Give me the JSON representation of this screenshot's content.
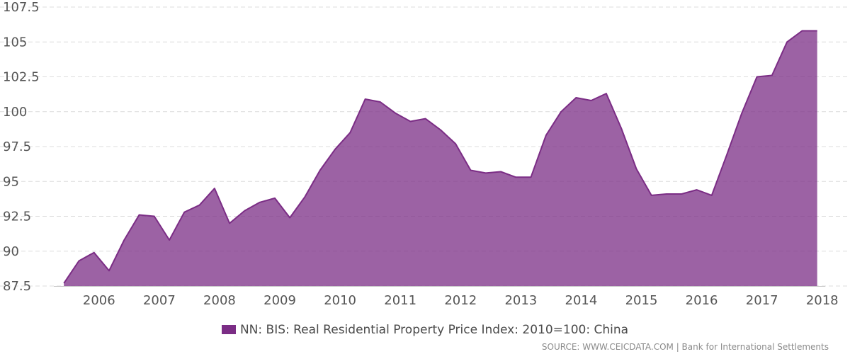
{
  "colors": {
    "series": "#7b2d85",
    "grid": "#dcdcdc",
    "tick_text": "#555555"
  },
  "legend": {
    "label": "NN: BIS: Real Residential Property Price Index: 2010=100: China"
  },
  "source_text": "SOURCE: WWW.CEICDATA.COM | Bank for International Settlements",
  "chart_data": {
    "type": "area",
    "ylim": [
      87.5,
      107.5
    ],
    "y_ticks": [
      87.5,
      90,
      92.5,
      95,
      97.5,
      100,
      102.5,
      105,
      107.5
    ],
    "y_tick_labels": [
      "87.5",
      "90",
      "92.5",
      "95",
      "97.5",
      "100",
      "102.5",
      "105",
      "107.5"
    ],
    "x_tick_labels": [
      "2006",
      "2007",
      "2008",
      "2009",
      "2010",
      "2011",
      "2012",
      "2013",
      "2014",
      "2015",
      "2016",
      "2017",
      "2018"
    ],
    "series": [
      {
        "name": "NN: BIS: Real Residential Property Price Index: 2010=100: China",
        "x": [
          "2005-06",
          "2005-09",
          "2005-12",
          "2006-03",
          "2006-06",
          "2006-09",
          "2006-12",
          "2007-03",
          "2007-06",
          "2007-09",
          "2007-12",
          "2008-03",
          "2008-06",
          "2008-09",
          "2008-12",
          "2009-03",
          "2009-06",
          "2009-09",
          "2009-12",
          "2010-03",
          "2010-06",
          "2010-09",
          "2010-12",
          "2011-03",
          "2011-06",
          "2011-09",
          "2011-12",
          "2012-03",
          "2012-06",
          "2012-09",
          "2012-12",
          "2013-03",
          "2013-06",
          "2013-09",
          "2013-12",
          "2014-03",
          "2014-06",
          "2014-09",
          "2014-12",
          "2015-03",
          "2015-06",
          "2015-09",
          "2015-12",
          "2016-03",
          "2016-06",
          "2016-09",
          "2016-12",
          "2017-03",
          "2017-06",
          "2017-09",
          "2017-12"
        ],
        "values": [
          87.7,
          89.3,
          89.9,
          88.6,
          90.8,
          92.6,
          92.5,
          90.8,
          92.8,
          93.3,
          94.5,
          92.0,
          92.9,
          93.5,
          93.8,
          92.4,
          93.9,
          95.8,
          97.3,
          98.5,
          100.9,
          100.7,
          99.9,
          99.3,
          99.5,
          98.7,
          97.7,
          95.8,
          95.6,
          95.7,
          95.3,
          95.3,
          98.3,
          100.0,
          101.0,
          100.8,
          101.3,
          98.8,
          95.9,
          94.0,
          94.1,
          94.1,
          94.4,
          94.0,
          96.9,
          99.9,
          102.5,
          102.6,
          105.0,
          105.8,
          105.8
        ]
      }
    ]
  }
}
